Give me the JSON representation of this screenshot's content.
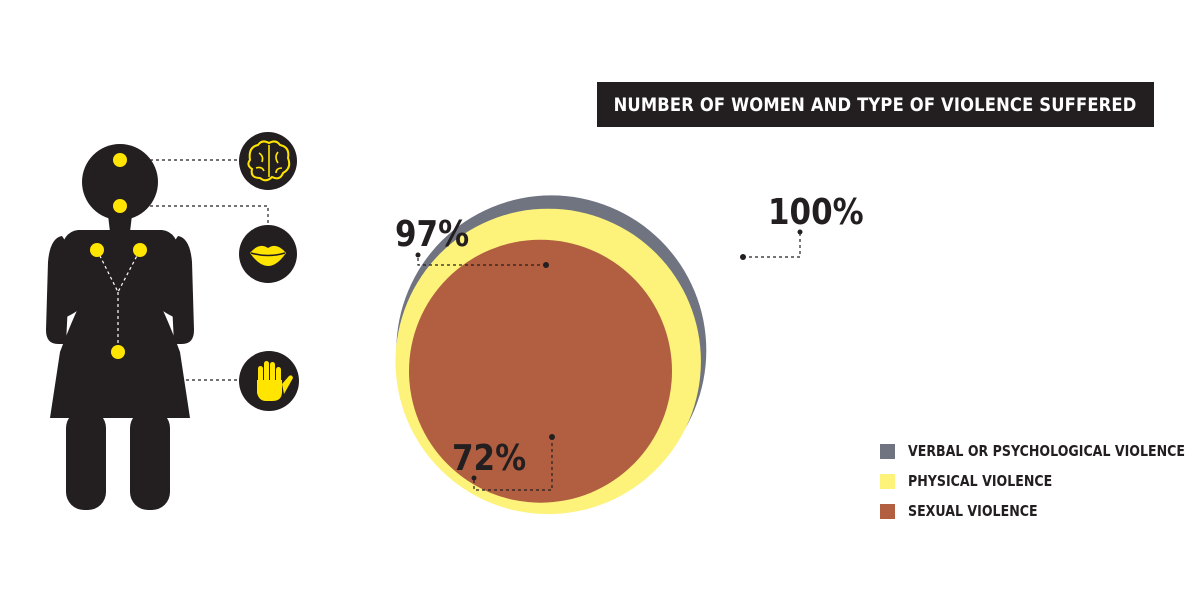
{
  "title": "NUMBER OF WOMEN AND TYPE OF VIOLENCE SUFFERED",
  "colors": {
    "verbal": "#6f7480",
    "physical": "#fdf27a",
    "sexual": "#b25f41",
    "ink": "#231f20",
    "accent": "#ffe500"
  },
  "body_icons": [
    "brain-icon",
    "lips-icon",
    "hand-icon"
  ],
  "chart_data": {
    "type": "nested-circles",
    "unit": "%",
    "series": [
      {
        "name": "VERBAL OR PSYCHOLOGICAL VIOLENCE",
        "value": 100,
        "label": "100%"
      },
      {
        "name": "PHYSICAL VIOLENCE",
        "value": 97,
        "label": "97%"
      },
      {
        "name": "SEXUAL VIOLENCE",
        "value": 72,
        "label": "72%"
      }
    ],
    "legend": {
      "position": "bottom-right",
      "entries": [
        "VERBAL OR PSYCHOLOGICAL VIOLENCE",
        "PHYSICAL VIOLENCE",
        "SEXUAL VIOLENCE"
      ]
    }
  }
}
